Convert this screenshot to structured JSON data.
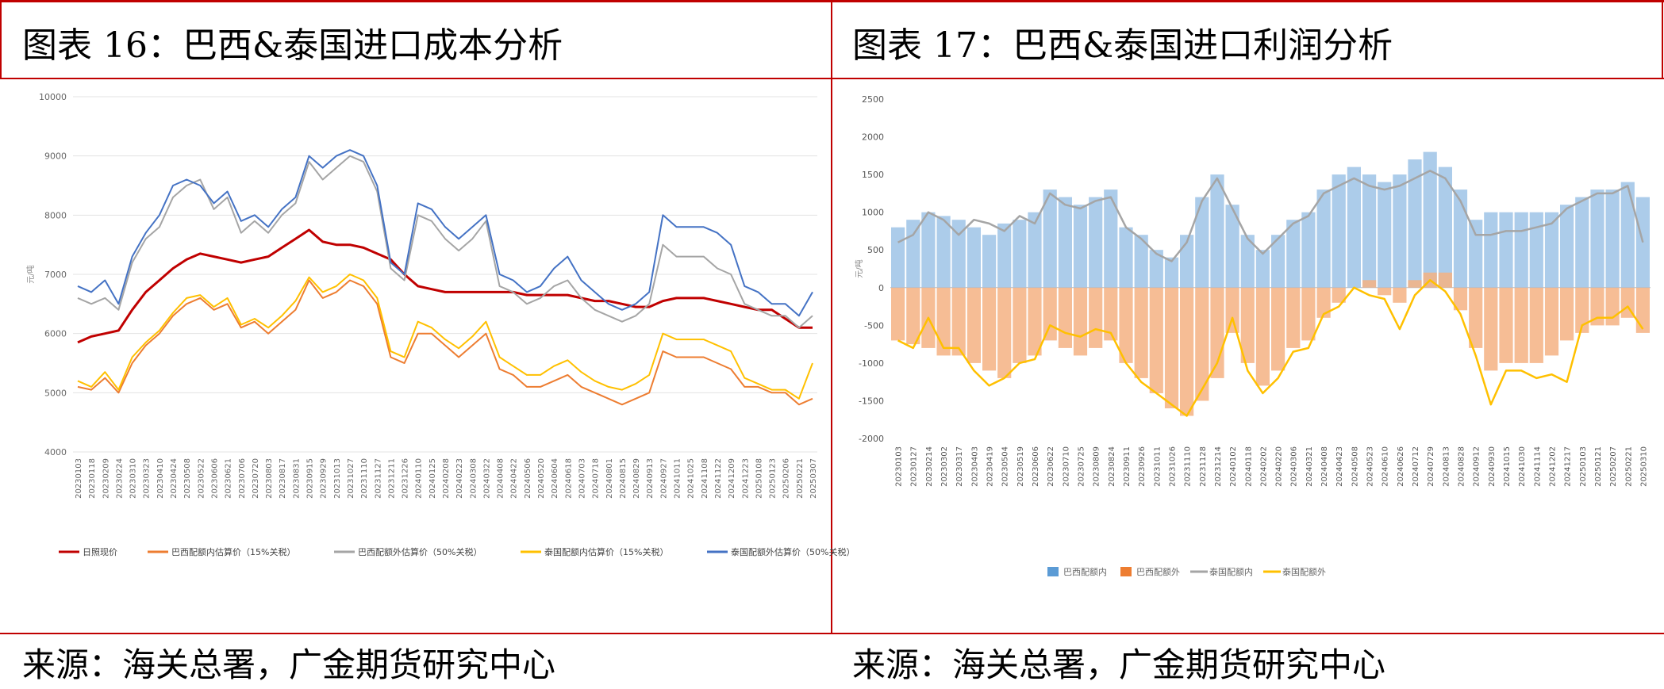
{
  "left": {
    "title": "图表 16：巴西&泰国进口成本分析",
    "source": "来源：海关总署，广金期货研究中心",
    "chart_data": {
      "type": "line",
      "ylabel": "元/吨",
      "ylim": [
        4000,
        10000
      ],
      "yticks": [
        4000,
        5000,
        6000,
        7000,
        8000,
        9000,
        10000
      ],
      "grid": true,
      "legend_position": "bottom",
      "x_ticks": [
        "20230103",
        "20230118",
        "20230209",
        "20230224",
        "20230310",
        "20230323",
        "20230410",
        "20230424",
        "20230508",
        "20230522",
        "20230606",
        "20230621",
        "20230706",
        "20230720",
        "20230803",
        "20230817",
        "20230831",
        "20230915",
        "20230929",
        "20231013",
        "20231027",
        "20231110",
        "20231127",
        "20231211",
        "20231226",
        "20240110",
        "20240125",
        "20240208",
        "20240223",
        "20240308",
        "20240322",
        "20240408",
        "20240422",
        "20240506",
        "20240520",
        "20240604",
        "20240618",
        "20240703",
        "20240718",
        "20240801",
        "20240815",
        "20240829",
        "20240913",
        "20240927",
        "20241011",
        "20241025",
        "20241108",
        "20241122",
        "20241209",
        "20241223",
        "20250108",
        "20250123",
        "20250206",
        "20250221",
        "20250307"
      ],
      "series": [
        {
          "name": "日照现价",
          "color": "#c00000",
          "values": [
            5850,
            5950,
            6000,
            6050,
            6400,
            6700,
            6900,
            7100,
            7250,
            7350,
            7300,
            7250,
            7200,
            7250,
            7300,
            7450,
            7600,
            7750,
            7550,
            7500,
            7500,
            7450,
            7350,
            7250,
            7000,
            6800,
            6750,
            6700,
            6700,
            6700,
            6700,
            6700,
            6700,
            6650,
            6650,
            6650,
            6650,
            6600,
            6550,
            6550,
            6500,
            6450,
            6450,
            6550,
            6600,
            6600,
            6600,
            6550,
            6500,
            6450,
            6400,
            6400,
            6250,
            6100,
            6100
          ]
        },
        {
          "name": "巴西配额内估算价（15%关税）",
          "color": "#ed7d31",
          "values": [
            5100,
            5050,
            5250,
            5000,
            5500,
            5800,
            6000,
            6300,
            6500,
            6600,
            6400,
            6500,
            6100,
            6200,
            6000,
            6200,
            6400,
            6900,
            6600,
            6700,
            6900,
            6800,
            6500,
            5600,
            5500,
            6000,
            6000,
            5800,
            5600,
            5800,
            6000,
            5400,
            5300,
            5100,
            5100,
            5200,
            5300,
            5100,
            5000,
            4900,
            4800,
            4900,
            5000,
            5700,
            5600,
            5600,
            5600,
            5500,
            5400,
            5100,
            5100,
            5000,
            5000,
            4800,
            4900
          ]
        },
        {
          "name": "巴西配额外估算价（50%关税）",
          "color": "#a5a5a5",
          "values": [
            6600,
            6500,
            6600,
            6400,
            7200,
            7600,
            7800,
            8300,
            8500,
            8600,
            8100,
            8300,
            7700,
            7900,
            7700,
            8000,
            8200,
            8900,
            8600,
            8800,
            9000,
            8900,
            8400,
            7100,
            6900,
            8000,
            7900,
            7600,
            7400,
            7600,
            7900,
            6800,
            6700,
            6500,
            6600,
            6800,
            6900,
            6600,
            6400,
            6300,
            6200,
            6300,
            6500,
            7500,
            7300,
            7300,
            7300,
            7100,
            7000,
            6500,
            6400,
            6300,
            6300,
            6100,
            6300
          ]
        },
        {
          "name": "泰国配额内估算价（15%关税）",
          "color": "#ffc000",
          "values": [
            5200,
            5100,
            5350,
            5050,
            5600,
            5850,
            6050,
            6350,
            6600,
            6650,
            6450,
            6600,
            6150,
            6250,
            6100,
            6300,
            6550,
            6950,
            6700,
            6800,
            7000,
            6900,
            6600,
            5700,
            5600,
            6200,
            6100,
            5900,
            5750,
            5950,
            6200,
            5600,
            5450,
            5300,
            5300,
            5450,
            5550,
            5350,
            5200,
            5100,
            5050,
            5150,
            5300,
            6000,
            5900,
            5900,
            5900,
            5800,
            5700,
            5250,
            5150,
            5050,
            5050,
            4900,
            5500
          ]
        },
        {
          "name": "泰国配额外估算价（50%关税）",
          "color": "#4472c4",
          "values": [
            6800,
            6700,
            6900,
            6500,
            7300,
            7700,
            8000,
            8500,
            8600,
            8500,
            8200,
            8400,
            7900,
            8000,
            7800,
            8100,
            8300,
            9000,
            8800,
            9000,
            9100,
            9000,
            8500,
            7200,
            7000,
            8200,
            8100,
            7800,
            7600,
            7800,
            8000,
            7000,
            6900,
            6700,
            6800,
            7100,
            7300,
            6900,
            6700,
            6500,
            6400,
            6500,
            6700,
            8000,
            7800,
            7800,
            7800,
            7700,
            7500,
            6800,
            6700,
            6500,
            6500,
            6300,
            6700
          ]
        }
      ]
    }
  },
  "right": {
    "title": "图表 17：巴西&泰国进口利润分析",
    "source": "来源：海关总署，广金期货研究中心",
    "chart_data": {
      "type": "bar+line",
      "ylabel": "元/吨",
      "ylim": [
        -2000,
        2500
      ],
      "yticks": [
        -2000,
        -1500,
        -1000,
        -500,
        0,
        500,
        1000,
        1500,
        2000,
        2500
      ],
      "grid": false,
      "legend_position": "bottom",
      "x_ticks": [
        "20230103",
        "20230127",
        "20230214",
        "20230302",
        "20230317",
        "20230403",
        "20230419",
        "20230504",
        "20230519",
        "20230606",
        "20230622",
        "20230710",
        "20230725",
        "20230809",
        "20230824",
        "20230911",
        "20230926",
        "20231011",
        "20231026",
        "20231110",
        "20231128",
        "20231214",
        "20240102",
        "20240118",
        "20240202",
        "20240220",
        "20240306",
        "20240321",
        "20240408",
        "20240423",
        "20240508",
        "20240523",
        "20240610",
        "20240626",
        "20240712",
        "20240729",
        "20240813",
        "20240828",
        "20240912",
        "20240930",
        "20241015",
        "20241030",
        "20241114",
        "20241202",
        "20241217",
        "20250103",
        "20250121",
        "20250207",
        "20250221",
        "20250310"
      ],
      "series": [
        {
          "name": "巴西配额内",
          "kind": "bar",
          "color": "#9dc3e6",
          "values": [
            800,
            900,
            1000,
            950,
            900,
            800,
            700,
            850,
            900,
            1000,
            1300,
            1200,
            1100,
            1200,
            1300,
            800,
            700,
            500,
            400,
            700,
            1200,
            1500,
            1100,
            700,
            500,
            700,
            900,
            1000,
            1300,
            1500,
            1600,
            1500,
            1400,
            1500,
            1700,
            1800,
            1600,
            1300,
            900,
            1000,
            1000,
            1000,
            1000,
            1000,
            1100,
            1200,
            1300,
            1300,
            1400,
            1200
          ]
        },
        {
          "name": "巴西配额外",
          "kind": "bar",
          "color": "#f4b183",
          "values": [
            -700,
            -750,
            -800,
            -900,
            -900,
            -1000,
            -1100,
            -1200,
            -1000,
            -900,
            -700,
            -800,
            -900,
            -800,
            -700,
            -1000,
            -1200,
            -1400,
            -1600,
            -1700,
            -1500,
            -1200,
            -600,
            -1000,
            -1300,
            -1100,
            -800,
            -700,
            -400,
            -200,
            0,
            100,
            -100,
            -200,
            100,
            200,
            200,
            -300,
            -800,
            -1100,
            -1000,
            -1000,
            -1000,
            -900,
            -700,
            -600,
            -500,
            -500,
            -400,
            -600
          ]
        },
        {
          "name": "泰国配额内",
          "kind": "line",
          "color": "#a5a5a5",
          "values": [
            600,
            700,
            1000,
            900,
            700,
            900,
            850,
            750,
            950,
            850,
            1250,
            1100,
            1050,
            1150,
            1200,
            800,
            650,
            450,
            350,
            600,
            1150,
            1450,
            1050,
            650,
            450,
            650,
            850,
            950,
            1250,
            1350,
            1450,
            1350,
            1300,
            1350,
            1450,
            1550,
            1450,
            1150,
            700,
            700,
            750,
            750,
            800,
            850,
            1050,
            1150,
            1250,
            1250,
            1350,
            600
          ]
        },
        {
          "name": "泰国配额外",
          "kind": "line",
          "color": "#ffc000",
          "values": [
            -700,
            -800,
            -400,
            -800,
            -800,
            -1100,
            -1300,
            -1200,
            -1000,
            -950,
            -500,
            -600,
            -650,
            -550,
            -600,
            -1000,
            -1250,
            -1400,
            -1550,
            -1700,
            -1350,
            -1000,
            -400,
            -1100,
            -1400,
            -1200,
            -850,
            -800,
            -350,
            -250,
            0,
            -100,
            -150,
            -550,
            -100,
            100,
            -50,
            -350,
            -900,
            -1550,
            -1100,
            -1100,
            -1200,
            -1150,
            -1250,
            -500,
            -400,
            -400,
            -250,
            -550
          ]
        }
      ]
    }
  }
}
